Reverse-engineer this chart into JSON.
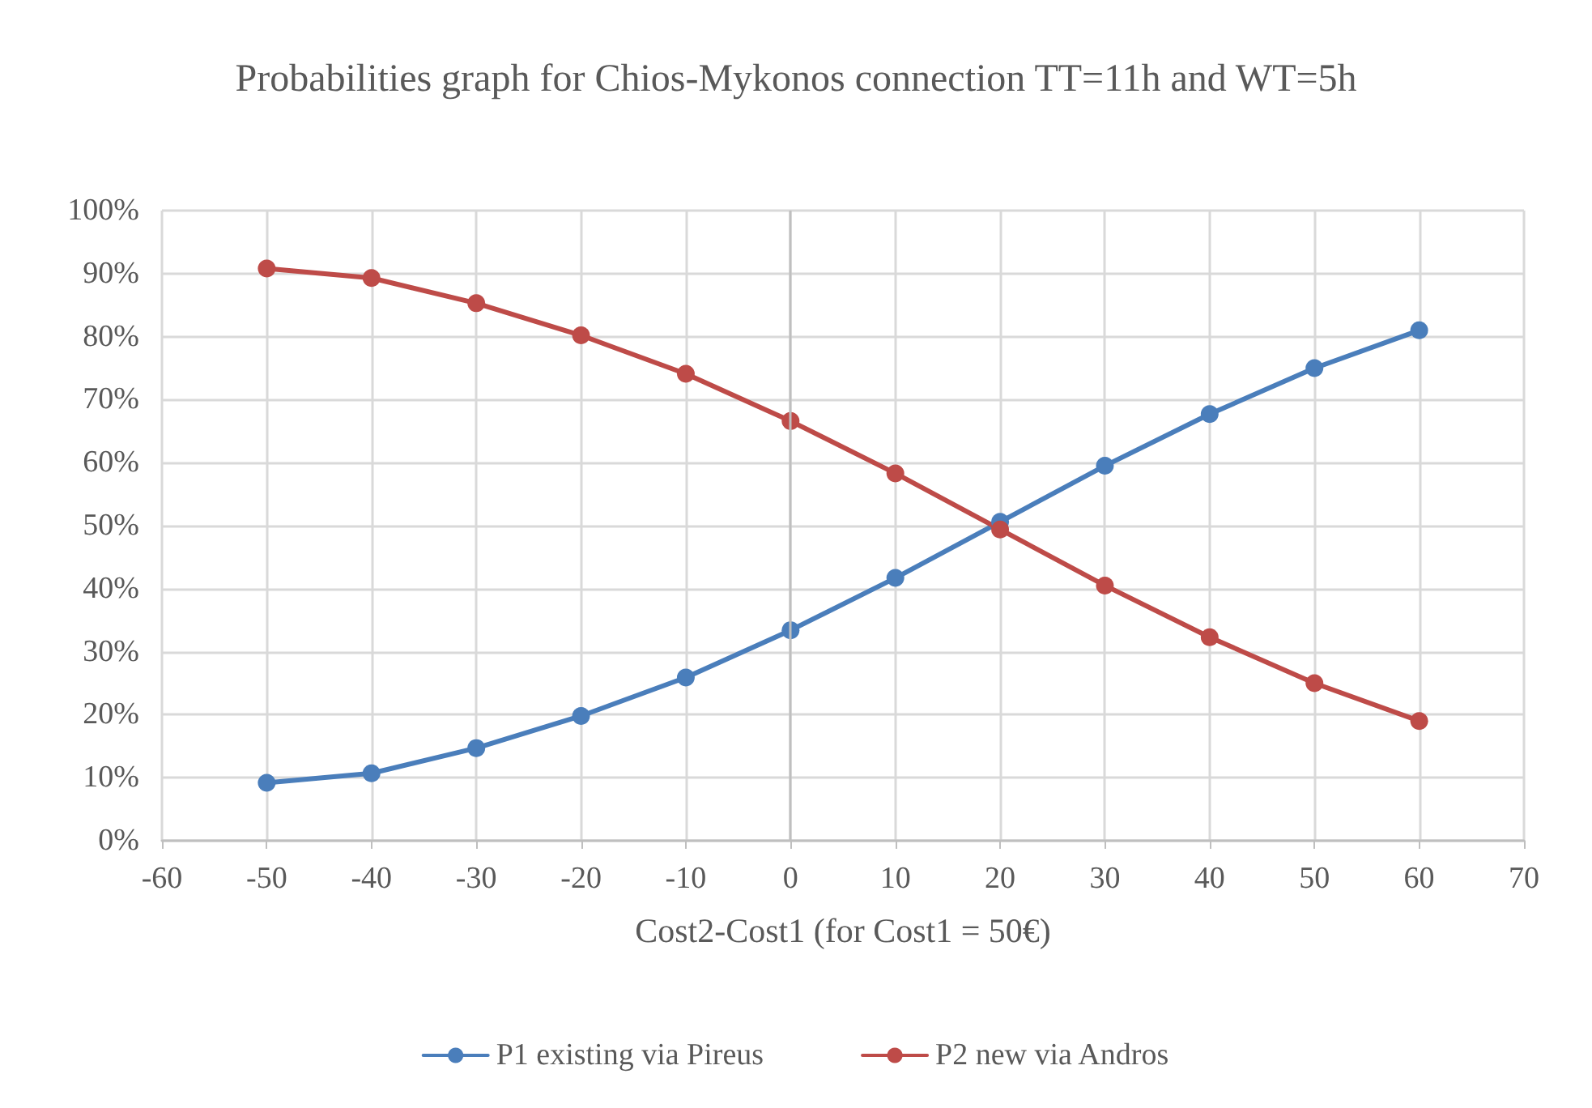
{
  "chart_data": {
    "type": "line",
    "title": "Probabilities graph for Chios-Mykonos connection TT=11h and WT=5h",
    "xlabel": "Cost2-Cost1 (for Cost1 = 50€)",
    "x": [
      -50,
      -40,
      -30,
      -20,
      -10,
      0,
      10,
      20,
      30,
      40,
      50,
      60
    ],
    "series": [
      {
        "name": "P1 existing via Pireus",
        "color": "#4a7ebb",
        "values": [
          9.2,
          10.7,
          14.7,
          19.8,
          25.9,
          33.4,
          41.7,
          50.6,
          59.5,
          67.7,
          75.0,
          81.0
        ]
      },
      {
        "name": "P2 new via Andros",
        "color": "#be4b48",
        "values": [
          90.8,
          89.3,
          85.3,
          80.2,
          74.1,
          66.6,
          58.3,
          49.4,
          40.5,
          32.3,
          25.0,
          19.0
        ]
      }
    ],
    "xlim": [
      -60,
      70
    ],
    "xticks": [
      -60,
      -50,
      -40,
      -30,
      -20,
      -10,
      0,
      10,
      20,
      30,
      40,
      50,
      60,
      70
    ],
    "ylim": [
      0,
      100
    ],
    "yticks": [
      {
        "value": 0,
        "label": "0%"
      },
      {
        "value": 10,
        "label": "10%"
      },
      {
        "value": 20,
        "label": "20%"
      },
      {
        "value": 30,
        "label": "30%"
      },
      {
        "value": 40,
        "label": "40%"
      },
      {
        "value": 50,
        "label": "50%"
      },
      {
        "value": 60,
        "label": "60%"
      },
      {
        "value": 70,
        "label": "70%"
      },
      {
        "value": 80,
        "label": "80%"
      },
      {
        "value": 90,
        "label": "90%"
      },
      {
        "value": 100,
        "label": "100%"
      }
    ],
    "ref_lines": [
      {
        "axis": "x",
        "value": 0,
        "color": "#bfbfbf"
      }
    ],
    "grid": true,
    "legend": "bottom",
    "marker": "circle",
    "line_style": "solid"
  }
}
